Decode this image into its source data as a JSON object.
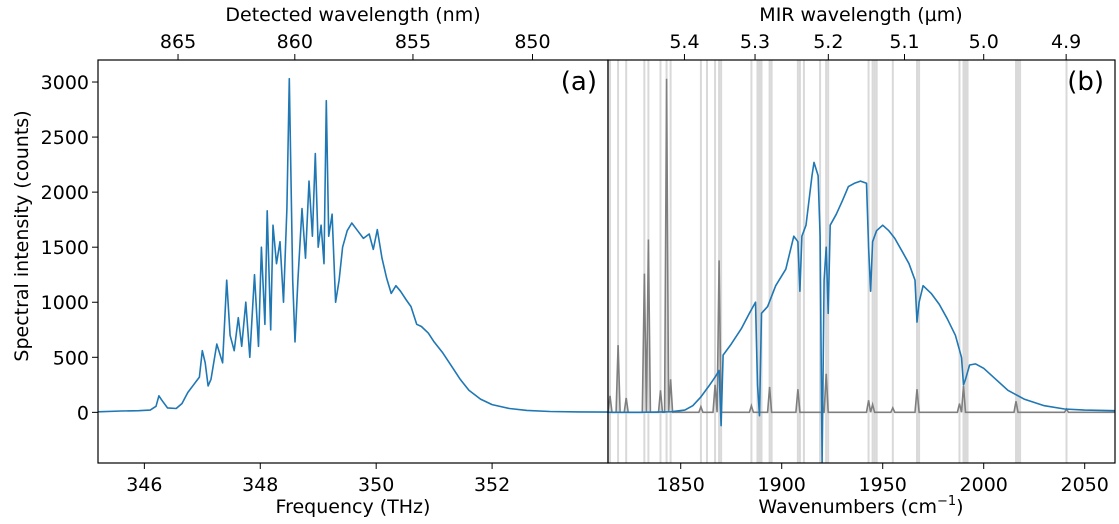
{
  "figure": {
    "ylabel": "Spectral intensity (counts)",
    "y_ticks": [
      "0",
      "500",
      "1000",
      "1500",
      "2000",
      "2500",
      "3000"
    ]
  },
  "panel_a": {
    "label": "(a)",
    "xlabel": "Frequency (THz)",
    "top_xlabel": "Detected wavelength (nm)",
    "x_ticks": [
      "346",
      "348",
      "350",
      "352"
    ],
    "top_ticks": [
      "865",
      "860",
      "855",
      "850"
    ]
  },
  "panel_b": {
    "label": "(b)",
    "xlabel_main": "Wavenumbers (cm",
    "xlabel_sup": "−1",
    "xlabel_close": ")",
    "top_xlabel": "MIR wavelength (µm)",
    "x_ticks": [
      "1850",
      "1900",
      "1950",
      "2000",
      "2050"
    ],
    "top_ticks": [
      "5.4",
      "5.3",
      "5.2",
      "5.1",
      "5.0",
      "4.9"
    ]
  },
  "colors": {
    "spectrum": "#1f77b4",
    "reference": "#7f7f7f",
    "lines": "#d9d9d9"
  },
  "chart_data": [
    {
      "type": "line",
      "panel": "(a)",
      "xlabel": "Frequency (THz)",
      "ylabel": "Spectral intensity (counts)",
      "top_xlabel": "Detected wavelength (nm)",
      "xlim": [
        345.2,
        354.0
      ],
      "ylim": [
        -460,
        3200
      ],
      "x_ticks": [
        346,
        348,
        350,
        352
      ],
      "top_ticks_nm": [
        865,
        860,
        855,
        850
      ],
      "series": [
        {
          "points": [
            [
              345.2,
              5
            ],
            [
              345.6,
              12
            ],
            [
              345.9,
              15
            ],
            [
              346.1,
              20
            ],
            [
              346.2,
              55
            ],
            [
              346.25,
              150
            ],
            [
              346.3,
              110
            ],
            [
              346.4,
              40
            ],
            [
              346.55,
              35
            ],
            [
              346.65,
              80
            ],
            [
              346.75,
              180
            ],
            [
              346.85,
              250
            ],
            [
              346.95,
              320
            ],
            [
              347.0,
              560
            ],
            [
              347.05,
              450
            ],
            [
              347.1,
              240
            ],
            [
              347.15,
              300
            ],
            [
              347.25,
              620
            ],
            [
              347.35,
              450
            ],
            [
              347.42,
              1200
            ],
            [
              347.48,
              700
            ],
            [
              347.55,
              560
            ],
            [
              347.62,
              860
            ],
            [
              347.68,
              600
            ],
            [
              347.75,
              1000
            ],
            [
              347.82,
              500
            ],
            [
              347.9,
              1250
            ],
            [
              347.97,
              600
            ],
            [
              348.02,
              1500
            ],
            [
              348.08,
              800
            ],
            [
              348.12,
              1830
            ],
            [
              348.18,
              750
            ],
            [
              348.22,
              1700
            ],
            [
              348.28,
              1350
            ],
            [
              348.34,
              1550
            ],
            [
              348.4,
              1000
            ],
            [
              348.46,
              1850
            ],
            [
              348.5,
              3030
            ],
            [
              348.56,
              1200
            ],
            [
              348.6,
              640
            ],
            [
              348.65,
              1200
            ],
            [
              348.72,
              1850
            ],
            [
              348.78,
              1400
            ],
            [
              348.84,
              2100
            ],
            [
              348.9,
              1600
            ],
            [
              348.95,
              2350
            ],
            [
              349.0,
              1500
            ],
            [
              349.05,
              1700
            ],
            [
              349.1,
              1350
            ],
            [
              349.14,
              2830
            ],
            [
              349.18,
              1600
            ],
            [
              349.24,
              1800
            ],
            [
              349.3,
              1000
            ],
            [
              349.36,
              1200
            ],
            [
              349.42,
              1500
            ],
            [
              349.5,
              1650
            ],
            [
              349.58,
              1720
            ],
            [
              349.68,
              1650
            ],
            [
              349.78,
              1580
            ],
            [
              349.88,
              1620
            ],
            [
              349.95,
              1480
            ],
            [
              350.02,
              1660
            ],
            [
              350.1,
              1400
            ],
            [
              350.18,
              1220
            ],
            [
              350.26,
              1080
            ],
            [
              350.34,
              1150
            ],
            [
              350.42,
              1100
            ],
            [
              350.52,
              1020
            ],
            [
              350.6,
              960
            ],
            [
              350.7,
              800
            ],
            [
              350.78,
              780
            ],
            [
              350.9,
              720
            ],
            [
              351.0,
              640
            ],
            [
              351.15,
              540
            ],
            [
              351.3,
              420
            ],
            [
              351.45,
              300
            ],
            [
              351.6,
              200
            ],
            [
              351.8,
              120
            ],
            [
              352.0,
              70
            ],
            [
              352.3,
              35
            ],
            [
              352.6,
              18
            ],
            [
              353.0,
              8
            ],
            [
              353.5,
              4
            ],
            [
              354.0,
              2
            ]
          ]
        }
      ]
    },
    {
      "type": "line",
      "panel": "(b)",
      "xlabel": "Wavenumbers (cm−1)",
      "top_xlabel": "MIR wavelength (µm)",
      "xlim": [
        1814,
        2065
      ],
      "ylim": [
        -460,
        3200
      ],
      "x_ticks": [
        1850,
        1900,
        1950,
        2000,
        2050
      ],
      "top_ticks_um": [
        5.4,
        5.3,
        5.2,
        5.1,
        5.0,
        4.9
      ],
      "vertical_lines": [
        1815,
        1819,
        1823,
        1832,
        1834,
        1840,
        1843,
        1845,
        1860,
        1863,
        1867,
        1869,
        1870,
        1885,
        1888,
        1889,
        1890,
        1894,
        1895,
        1908,
        1909,
        1911,
        1919,
        1922,
        1923,
        1943,
        1945,
        1946,
        1947,
        1955,
        1967,
        1968,
        1988,
        1990,
        1991,
        1992,
        2016,
        2017,
        2018,
        2041
      ],
      "series": [
        {
          "name": "",
          "color": "spectrum",
          "points": [
            [
              1814,
              0
            ],
            [
              1830,
              0
            ],
            [
              1845,
              5
            ],
            [
              1852,
              20
            ],
            [
              1856,
              60
            ],
            [
              1860,
              140
            ],
            [
              1864,
              240
            ],
            [
              1867,
              320
            ],
            [
              1869,
              380
            ],
            [
              1870,
              -120
            ],
            [
              1871,
              520
            ],
            [
              1875,
              620
            ],
            [
              1880,
              760
            ],
            [
              1884,
              900
            ],
            [
              1887,
              1000
            ],
            [
              1888,
              250
            ],
            [
              1889,
              -30
            ],
            [
              1890,
              900
            ],
            [
              1893,
              960
            ],
            [
              1897,
              1150
            ],
            [
              1902,
              1300
            ],
            [
              1906,
              1600
            ],
            [
              1908,
              1550
            ],
            [
              1909,
              1100
            ],
            [
              1910,
              1600
            ],
            [
              1912,
              1700
            ],
            [
              1915,
              2150
            ],
            [
              1916,
              2270
            ],
            [
              1918,
              2150
            ],
            [
              1919,
              1600
            ],
            [
              1920,
              -460
            ],
            [
              1921,
              1200
            ],
            [
              1922,
              1500
            ],
            [
              1923,
              900
            ],
            [
              1924,
              1700
            ],
            [
              1927,
              1800
            ],
            [
              1930,
              1920
            ],
            [
              1933,
              2050
            ],
            [
              1936,
              2080
            ],
            [
              1939,
              2100
            ],
            [
              1942,
              2080
            ],
            [
              1943,
              1500
            ],
            [
              1944,
              1100
            ],
            [
              1945,
              1550
            ],
            [
              1947,
              1650
            ],
            [
              1950,
              1700
            ],
            [
              1953,
              1650
            ],
            [
              1956,
              1580
            ],
            [
              1960,
              1450
            ],
            [
              1963,
              1350
            ],
            [
              1966,
              1200
            ],
            [
              1967,
              820
            ],
            [
              1968,
              1000
            ],
            [
              1970,
              1150
            ],
            [
              1974,
              1080
            ],
            [
              1978,
              980
            ],
            [
              1982,
              850
            ],
            [
              1986,
              700
            ],
            [
              1989,
              500
            ],
            [
              1990,
              250
            ],
            [
              1991,
              300
            ],
            [
              1993,
              430
            ],
            [
              1996,
              440
            ],
            [
              2000,
              400
            ],
            [
              2006,
              300
            ],
            [
              2012,
              200
            ],
            [
              2020,
              120
            ],
            [
              2030,
              60
            ],
            [
              2040,
              30
            ],
            [
              2050,
              20
            ],
            [
              2065,
              15
            ]
          ]
        },
        {
          "name": "",
          "color": "reference",
          "points": [
            [
              1814,
              0
            ],
            [
              1815,
              150
            ],
            [
              1816,
              0
            ],
            [
              1818,
              0
            ],
            [
              1819,
              610
            ],
            [
              1820,
              0
            ],
            [
              1822,
              0
            ],
            [
              1823,
              130
            ],
            [
              1824,
              0
            ],
            [
              1831,
              0
            ],
            [
              1832,
              1260
            ],
            [
              1833,
              0
            ],
            [
              1834,
              1570
            ],
            [
              1835,
              0
            ],
            [
              1839,
              0
            ],
            [
              1840,
              200
            ],
            [
              1841,
              0
            ],
            [
              1842,
              0
            ],
            [
              1843,
              3030
            ],
            [
              1844,
              0
            ],
            [
              1845,
              300
            ],
            [
              1846,
              0
            ],
            [
              1859,
              0
            ],
            [
              1860,
              50
            ],
            [
              1861,
              0
            ],
            [
              1866,
              0
            ],
            [
              1867,
              250
            ],
            [
              1868,
              0
            ],
            [
              1869,
              1380
            ],
            [
              1870,
              0
            ],
            [
              1884,
              0
            ],
            [
              1885,
              60
            ],
            [
              1886,
              0
            ],
            [
              1893,
              0
            ],
            [
              1894,
              230
            ],
            [
              1895,
              0
            ],
            [
              1907,
              0
            ],
            [
              1908,
              210
            ],
            [
              1909,
              0
            ],
            [
              1921,
              0
            ],
            [
              1922,
              350
            ],
            [
              1923,
              0
            ],
            [
              1942,
              0
            ],
            [
              1943,
              110
            ],
            [
              1944,
              0
            ],
            [
              1945,
              70
            ],
            [
              1946,
              0
            ],
            [
              1954,
              0
            ],
            [
              1955,
              40
            ],
            [
              1956,
              0
            ],
            [
              1966,
              0
            ],
            [
              1967,
              210
            ],
            [
              1968,
              0
            ],
            [
              1987,
              0
            ],
            [
              1988,
              80
            ],
            [
              1989,
              0
            ],
            [
              1990,
              240
            ],
            [
              1991,
              0
            ],
            [
              2015,
              0
            ],
            [
              2016,
              100
            ],
            [
              2017,
              0
            ],
            [
              2040,
              0
            ],
            [
              2041,
              30
            ],
            [
              2042,
              0
            ],
            [
              2065,
              0
            ]
          ]
        }
      ]
    }
  ]
}
